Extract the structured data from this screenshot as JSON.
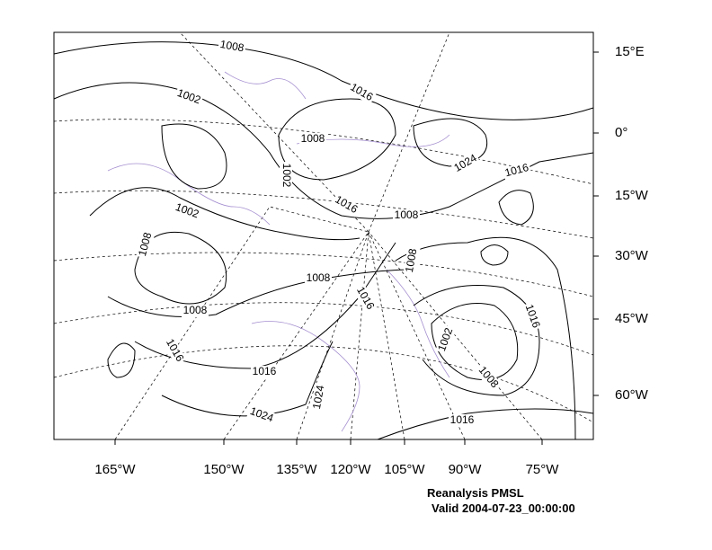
{
  "map": {
    "right_labels": [
      "15°E",
      "0°",
      "15°W",
      "30°W",
      "45°W",
      "60°W"
    ],
    "bottom_labels": [
      "165°W",
      "150°W",
      "135°W",
      "120°W",
      "105°W",
      "90°W",
      "75°W"
    ],
    "contour_labels": [
      "1008",
      "1002",
      "1016",
      "1008",
      "1002",
      "1024",
      "1016",
      "1016",
      "1008",
      "1002",
      "1008",
      "1008",
      "1008",
      "1016",
      "1008",
      "1016",
      "1002",
      "1016",
      "1016",
      "1008",
      "1024",
      "1024",
      "1016"
    ],
    "caption": [
      "Reanalysis PMSL",
      "Valid 2004-07-23_00:00:00"
    ]
  }
}
